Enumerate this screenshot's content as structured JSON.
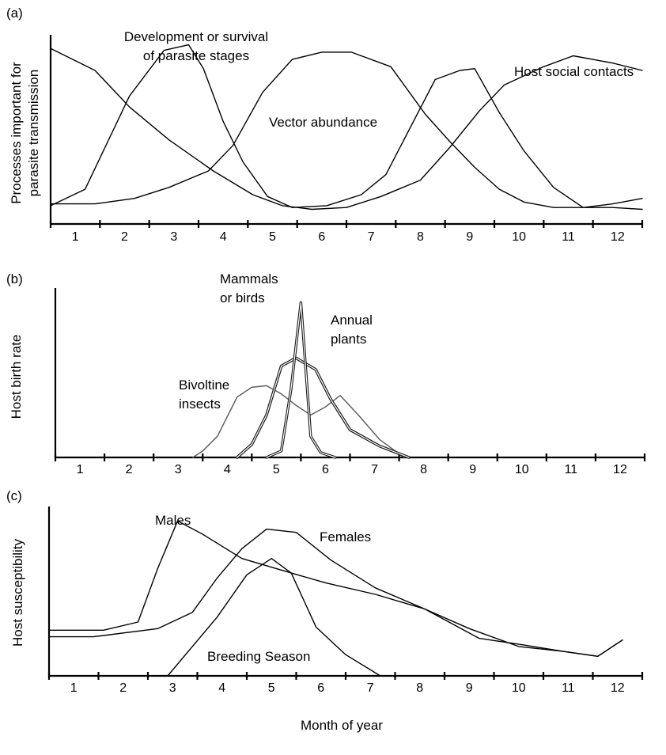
{
  "chart_data": [
    {
      "type": "line",
      "panel_label": "(a)",
      "ylabel": "Processes important for parasite transmission",
      "ylabel_lines": [
        "Processes important for",
        "parasite transmission"
      ],
      "xlabel": "",
      "x_ticks": [
        "1",
        "2",
        "3",
        "4",
        "5",
        "6",
        "7",
        "8",
        "9",
        "10",
        "11",
        "12"
      ],
      "xlim": [
        0.6,
        12.6
      ],
      "ylim": [
        0,
        100
      ],
      "grid": false,
      "legend": "none",
      "series": [
        {
          "name": "Development or survival of parasite stages",
          "label_lines": [
            "Development or survival",
            "of parasite stages"
          ],
          "x": [
            0.6,
            1.3,
            2.2,
            2.9,
            3.4,
            3.7,
            4.1,
            4.5,
            5.0,
            5.5,
            6.2,
            6.9,
            7.4,
            7.9,
            8.4,
            8.9,
            9.2,
            9.7,
            10.2,
            10.8,
            11.4,
            12.0,
            12.6
          ],
          "y": [
            10,
            19,
            70,
            95,
            98,
            85,
            56,
            34,
            15,
            9,
            10,
            16,
            27,
            53,
            79,
            84,
            85,
            61,
            40,
            20,
            9,
            11,
            14
          ]
        },
        {
          "name": "Host social contacts",
          "label_lines": [
            "Host social contacts"
          ],
          "x": [
            0.6,
            1.5,
            2.2,
            3.0,
            3.9,
            4.7,
            5.3,
            5.9,
            6.6,
            7.3,
            8.1,
            8.7,
            9.3,
            9.8,
            10.6,
            11.2,
            12.0,
            12.6
          ],
          "y": [
            96,
            84,
            64,
            46,
            29,
            16,
            10,
            8,
            9,
            15,
            24,
            42,
            62,
            76,
            86,
            92,
            88,
            84
          ]
        },
        {
          "name": "Vector abundance",
          "label_lines": [
            "Vector abundance"
          ],
          "x": [
            0.6,
            1.5,
            2.3,
            3.0,
            3.8,
            4.3,
            4.9,
            5.5,
            6.1,
            6.7,
            7.5,
            8.2,
            8.7,
            9.2,
            9.7,
            10.2,
            10.8,
            11.4,
            12.0,
            12.6
          ],
          "y": [
            11,
            11,
            14,
            20,
            29,
            43,
            72,
            90,
            94,
            94,
            86,
            60,
            45,
            31,
            19,
            12,
            9,
            9,
            9,
            8
          ]
        }
      ]
    },
    {
      "type": "line",
      "panel_label": "(b)",
      "ylabel": "Host birth rate",
      "xlabel": "",
      "x_ticks": [
        "1",
        "2",
        "3",
        "4",
        "5",
        "6",
        "7",
        "8",
        "9",
        "10",
        "11",
        "12"
      ],
      "xlim": [
        0.6,
        12.6
      ],
      "ylim": [
        0,
        100
      ],
      "grid": false,
      "legend": "none",
      "series": [
        {
          "name": "Bivoltine insects",
          "label_lines": [
            "Bivoltine",
            "insects"
          ],
          "color": "#606060",
          "x": [
            3.4,
            3.6,
            3.9,
            4.3,
            4.6,
            4.9,
            5.2,
            5.5,
            5.8,
            6.1,
            6.4,
            6.8,
            7.2,
            7.7
          ],
          "y": [
            0,
            4,
            13,
            37,
            43,
            44,
            39,
            32,
            26,
            31,
            38,
            25,
            11,
            0
          ]
        },
        {
          "name": "Mammals or birds",
          "label_lines": [
            "Mammals",
            "or birds"
          ],
          "color": "#1a1a1a",
          "x": [
            4.3,
            4.6,
            4.9,
            5.2,
            5.5,
            5.9,
            6.2,
            6.6,
            7.2,
            7.8
          ],
          "y": [
            0,
            8,
            26,
            56,
            61,
            54,
            36,
            17,
            7,
            0
          ]
        },
        {
          "name": "Annual plants",
          "label_lines": [
            "Annual",
            "plants"
          ],
          "color": "#1a1a1a",
          "x": [
            4.9,
            5.2,
            5.4,
            5.6,
            5.8,
            6.0,
            6.3
          ],
          "y": [
            0,
            4,
            42,
            95,
            13,
            3,
            0
          ]
        }
      ]
    },
    {
      "type": "line",
      "panel_label": "(c)",
      "ylabel": "Host susceptibility",
      "xlabel": "Month of year",
      "x_ticks": [
        "1",
        "2",
        "3",
        "4",
        "5",
        "6",
        "7",
        "8",
        "9",
        "10",
        "11",
        "12"
      ],
      "xlim": [
        0.6,
        12.6
      ],
      "ylim": [
        0,
        100
      ],
      "grid": false,
      "legend": "none",
      "series": [
        {
          "name": "Males",
          "label_lines": [
            "Males"
          ],
          "x": [
            0.6,
            1.7,
            2.4,
            2.8,
            3.2,
            3.7,
            4.5,
            5.4,
            6.2,
            7.2,
            8.2,
            9.1,
            10.1,
            11.0,
            11.7,
            12.2
          ],
          "y": [
            28,
            28,
            33,
            66,
            95,
            87,
            72,
            64,
            57,
            50,
            41,
            29,
            18,
            15,
            12,
            22
          ]
        },
        {
          "name": "Females",
          "label_lines": [
            "Females"
          ],
          "x": [
            0.6,
            1.5,
            2.8,
            3.5,
            4.0,
            4.5,
            5.0,
            5.6,
            6.3,
            7.2,
            8.2,
            9.3,
            10.2,
            11.0,
            11.7,
            12.2
          ],
          "y": [
            24,
            24,
            29,
            39,
            60,
            78,
            90,
            88,
            71,
            54,
            41,
            23,
            19,
            15,
            12,
            22
          ]
        },
        {
          "name": "Breeding Season",
          "label_lines": [
            "Breeding Season"
          ],
          "x": [
            3.0,
            4.0,
            4.6,
            5.1,
            5.5,
            6.0,
            6.6,
            7.3
          ],
          "y": [
            0,
            36,
            62,
            72,
            63,
            30,
            13,
            0
          ]
        }
      ]
    }
  ]
}
